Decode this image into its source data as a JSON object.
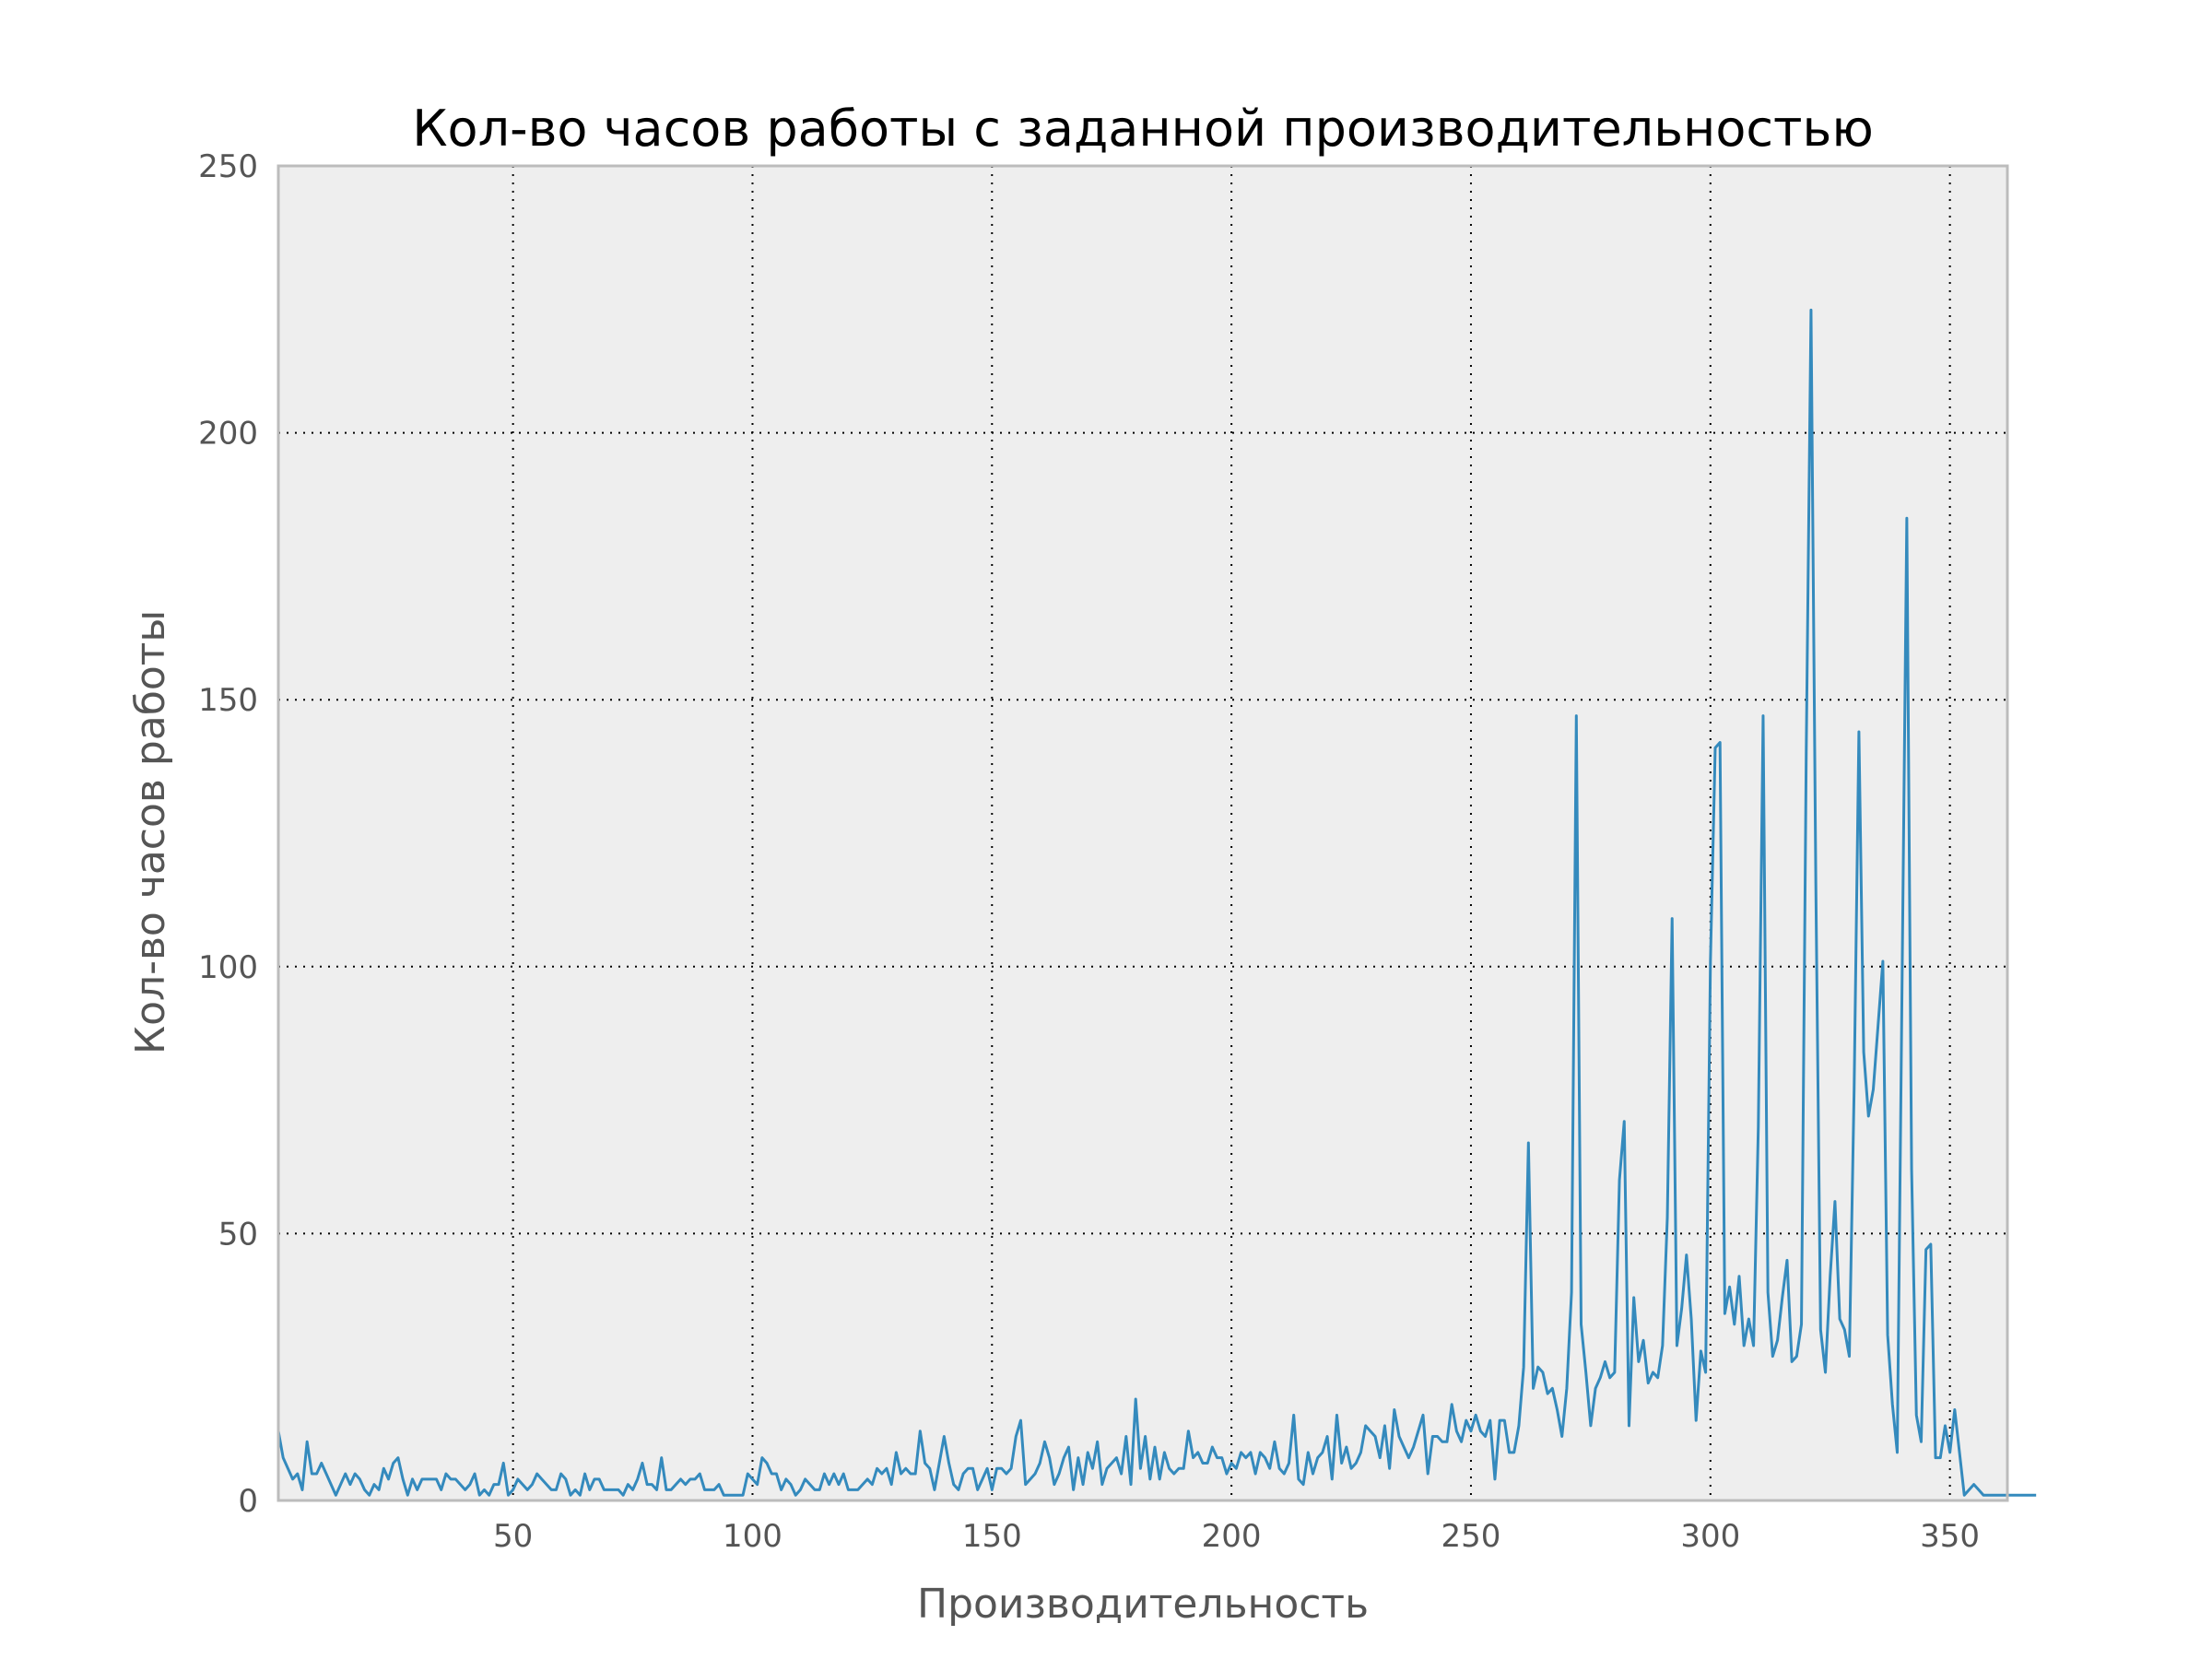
{
  "chart_data": {
    "type": "line",
    "title": "Кол-во часов работы с заданной производительностью",
    "xlabel": "Производительность",
    "ylabel": "Кол-во часов работы",
    "xlim": [
      1,
      362
    ],
    "ylim": [
      0,
      250
    ],
    "xticks": [
      "50",
      "100",
      "150",
      "200",
      "250",
      "300",
      "350"
    ],
    "yticks": [
      "0",
      "50",
      "100",
      "150",
      "200",
      "250"
    ],
    "grid": true,
    "colors": {
      "line": "#348abd",
      "plot_bg": "#eeeeee",
      "frame": "#bcbcbc"
    },
    "x_start": 1,
    "x_step": 1,
    "y": [
      13,
      8,
      6,
      4,
      5,
      2,
      11,
      5,
      5,
      7,
      5,
      3,
      1,
      3,
      5,
      3,
      5,
      4,
      2,
      1,
      3,
      2,
      6,
      4,
      7,
      8,
      4,
      1,
      4,
      2,
      4,
      4,
      4,
      4,
      2,
      5,
      4,
      4,
      3,
      2,
      3,
      5,
      1,
      2,
      1,
      3,
      3,
      7,
      1,
      2,
      4,
      3,
      2,
      3,
      5,
      4,
      3,
      2,
      2,
      5,
      4,
      1,
      2,
      1,
      5,
      2,
      4,
      4,
      2,
      2,
      2,
      2,
      1,
      3,
      2,
      4,
      7,
      3,
      3,
      2,
      8,
      2,
      2,
      3,
      4,
      3,
      4,
      4,
      5,
      2,
      2,
      2,
      3,
      1,
      1,
      1,
      1,
      1,
      5,
      4,
      3,
      8,
      7,
      5,
      5,
      2,
      4,
      3,
      1,
      2,
      4,
      3,
      2,
      2,
      5,
      3,
      5,
      3,
      5,
      2,
      2,
      2,
      3,
      4,
      3,
      6,
      5,
      6,
      3,
      9,
      5,
      6,
      5,
      5,
      13,
      7,
      6,
      2,
      7,
      12,
      7,
      3,
      2,
      5,
      6,
      6,
      2,
      4,
      6,
      2,
      6,
      6,
      5,
      6,
      12,
      15,
      3,
      4,
      5,
      7,
      11,
      8,
      3,
      5,
      8,
      10,
      2,
      8,
      3,
      9,
      6,
      11,
      3,
      6,
      7,
      8,
      5,
      12,
      3,
      19,
      6,
      12,
      4,
      10,
      4,
      9,
      6,
      5,
      6,
      6,
      13,
      8,
      9,
      7,
      7,
      10,
      8,
      8,
      5,
      7,
      6,
      9,
      8,
      9,
      5,
      9,
      8,
      6,
      11,
      6,
      5,
      7,
      16,
      4,
      3,
      9,
      5,
      8,
      9,
      12,
      4,
      16,
      7,
      10,
      6,
      7,
      9,
      14,
      13,
      12,
      8,
      14,
      6,
      17,
      12,
      10,
      8,
      10,
      13,
      16,
      5,
      12,
      12,
      11,
      11,
      18,
      13,
      11,
      15,
      13,
      16,
      13,
      12,
      15,
      4,
      15,
      15,
      9,
      9,
      14,
      25,
      67,
      21,
      25,
      24,
      20,
      21,
      17,
      12,
      21,
      39,
      147,
      33,
      24,
      14,
      21,
      23,
      26,
      23,
      24,
      60,
      71,
      14,
      38,
      26,
      30,
      22,
      24,
      23,
      29,
      53,
      109,
      29,
      36,
      46,
      34,
      15,
      28,
      24,
      101,
      141,
      142,
      35,
      40,
      33,
      42,
      29,
      34,
      29,
      70,
      147,
      39,
      27,
      30,
      38,
      45,
      26,
      27,
      33,
      140,
      223,
      116,
      32,
      24,
      42,
      56,
      34,
      32,
      27,
      77,
      144,
      84,
      72,
      77,
      89,
      101,
      31,
      18,
      9,
      96,
      184,
      62,
      16,
      11,
      47,
      48,
      8,
      8,
      14,
      9,
      17,
      9,
      1,
      2,
      3,
      2,
      1,
      1,
      1,
      1,
      1,
      1,
      1,
      1,
      1,
      1,
      1,
      1
    ]
  }
}
